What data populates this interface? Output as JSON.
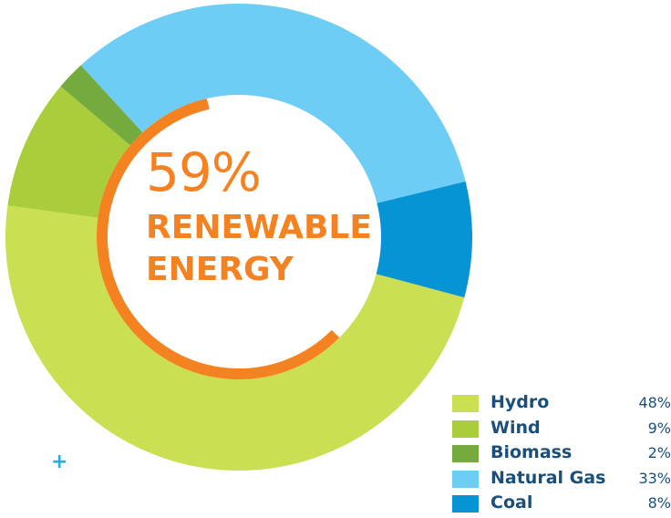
{
  "chart_data": {
    "type": "pie",
    "categories": [
      "Hydro",
      "Wind",
      "Biomass",
      "Natural Gas",
      "Coal"
    ],
    "values": [
      48,
      9,
      2,
      33,
      8
    ],
    "value_labels": [
      "48%",
      "9%",
      "2%",
      "33%",
      "8%"
    ],
    "colors": [
      "#cadf52",
      "#a9cd3b",
      "#75ab3e",
      "#6dcdf5",
      "#0694d4"
    ],
    "center_value": "59%",
    "center_label_line1": "RENEWABLE",
    "center_label_line2": "ENERGY",
    "highlight_fraction": 0.59,
    "highlight_color": "#f58220",
    "legend_position": "bottom-right"
  },
  "decor": {
    "plus_glyph": "+"
  }
}
